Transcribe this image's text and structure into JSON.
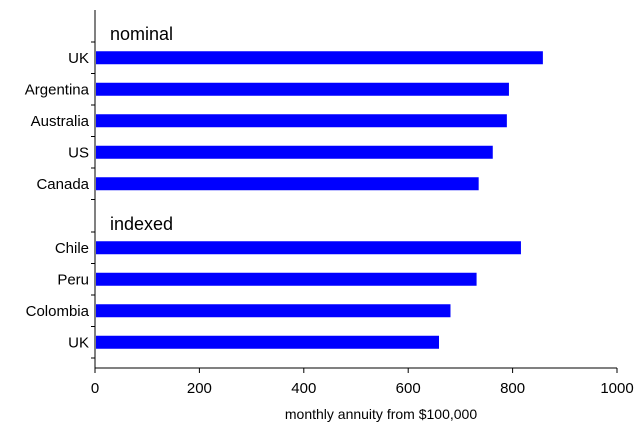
{
  "chart_data": {
    "type": "bar",
    "orientation": "horizontal",
    "groups": [
      {
        "label": "nominal",
        "categories": [
          "UK",
          "Argentina",
          "Australia",
          "US",
          "Canada"
        ],
        "values": [
          858,
          793,
          789,
          762,
          735
        ]
      },
      {
        "label": "indexed",
        "categories": [
          "Chile",
          "Peru",
          "Colombia",
          "UK"
        ],
        "values": [
          816,
          731,
          681,
          659
        ]
      }
    ],
    "xlabel": "monthly annuity from $100,000",
    "xlim": [
      0,
      1000
    ],
    "xticks": [
      "0",
      "200",
      "400",
      "600",
      "800",
      "1000"
    ],
    "grid": false,
    "bar_color": "#0000FF"
  }
}
